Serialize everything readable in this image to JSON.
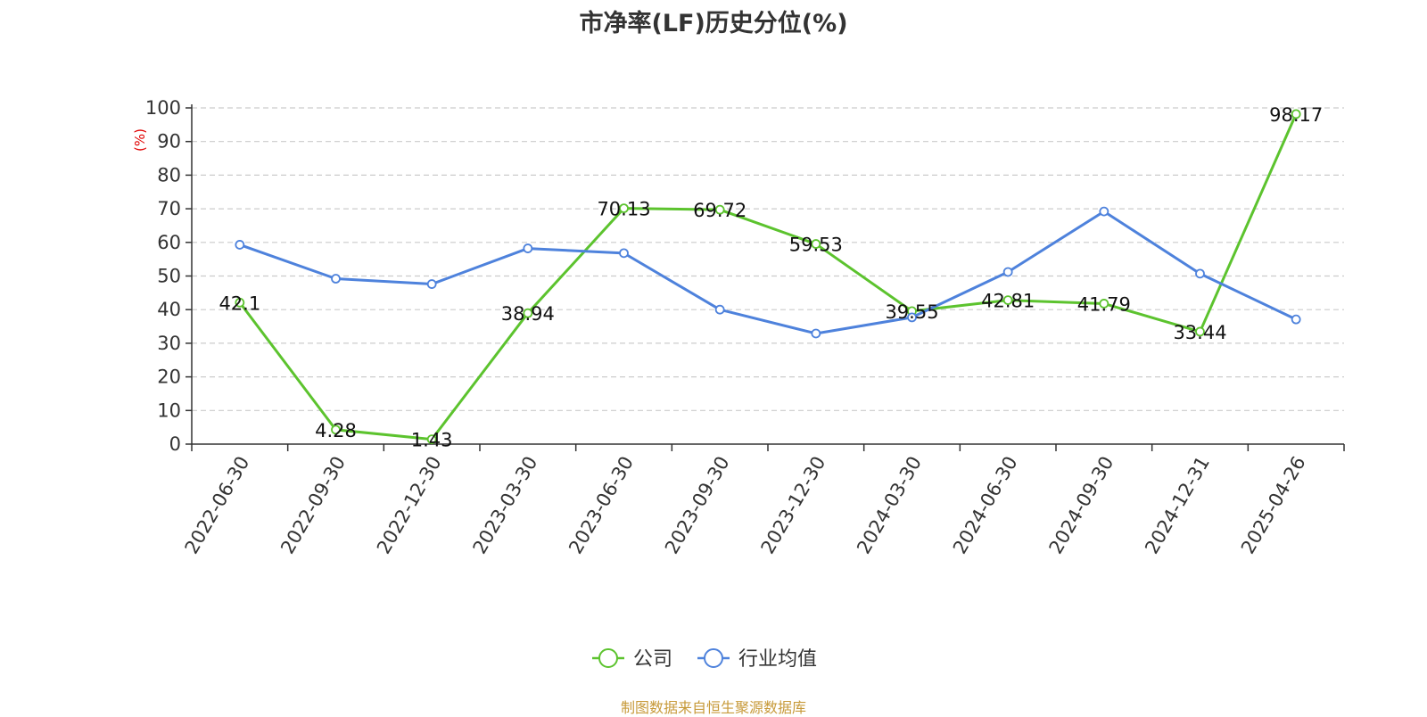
{
  "title": "市净率(LF)历史分位(%)",
  "source_note": "制图数据来自恒生聚源数据库",
  "colors": {
    "company": "#5cc32e",
    "industry": "#4e82dc",
    "axis": "#333333",
    "grid": "#cccccc",
    "ylabel": "#e00000"
  },
  "chart_data": {
    "type": "line",
    "title": "市净率(LF)历史分位(%)",
    "xlabel": "",
    "ylabel": "(%)",
    "ylim": [
      0,
      100
    ],
    "yticks": [
      0,
      10,
      20,
      30,
      40,
      50,
      60,
      70,
      80,
      90,
      100
    ],
    "grid": true,
    "legend_position": "bottom-center",
    "categories": [
      "2022-06-30",
      "2022-09-30",
      "2022-12-30",
      "2023-03-30",
      "2023-06-30",
      "2023-09-30",
      "2023-12-30",
      "2024-03-30",
      "2024-06-30",
      "2024-09-30",
      "2024-12-31",
      "2025-04-26"
    ],
    "series": [
      {
        "name": "公司",
        "values": [
          42.1,
          4.28,
          1.43,
          38.94,
          70.13,
          69.72,
          59.53,
          39.55,
          42.81,
          41.79,
          33.44,
          98.17
        ],
        "labels": [
          "42.1",
          "4.28",
          "1.43",
          "38.94",
          "70.13",
          "69.72",
          "59.53",
          "39.55",
          "42.81",
          "41.79",
          "33.44",
          "98.17"
        ],
        "color": "#5cc32e",
        "show_labels": true
      },
      {
        "name": "行业均值",
        "values": [
          59.3,
          49.2,
          47.6,
          58.2,
          56.8,
          40.0,
          32.9,
          37.7,
          51.2,
          69.2,
          50.7,
          37.1
        ],
        "color": "#4e82dc",
        "show_labels": false
      }
    ]
  }
}
